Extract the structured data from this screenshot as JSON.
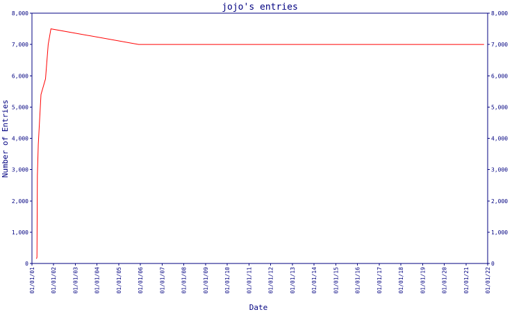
{
  "chart_data": {
    "type": "line",
    "title": "jojo's entries",
    "xlabel": "Date",
    "ylabel": "Number of Entries",
    "x_ticks": [
      "01/01/01",
      "01/01/02",
      "01/01/03",
      "01/01/04",
      "01/01/05",
      "01/01/06",
      "01/01/07",
      "01/01/08",
      "01/01/09",
      "01/01/10",
      "01/01/11",
      "01/01/12",
      "01/01/13",
      "01/01/14",
      "01/01/15",
      "01/01/16",
      "01/01/17",
      "01/01/18",
      "01/01/19",
      "01/01/20",
      "01/01/21",
      "01/01/22"
    ],
    "y_ticks": [
      "0",
      "1,000",
      "2,000",
      "3,000",
      "4,000",
      "5,000",
      "6,000",
      "7,000",
      "8,000"
    ],
    "ylim": [
      0,
      8000
    ],
    "x_range": [
      "01/01/01 00:00",
      "01/01/22 00:00"
    ],
    "grid": false,
    "series": [
      {
        "color": "#ff0000",
        "x": [
          "01/01/01 05:00",
          "01/01/01 05:30",
          "01/01/01 06:00",
          "01/01/01 07:00",
          "01/01/01 10:00",
          "01/01/01 15:00",
          "01/01/01 18:00",
          "01/01/01 21:00",
          "01/01/05 22:00",
          "01/01/21 20:00"
        ],
        "y": [
          150,
          200,
          2800,
          3800,
          5400,
          5900,
          7000,
          7500,
          7000,
          7000
        ]
      }
    ]
  }
}
